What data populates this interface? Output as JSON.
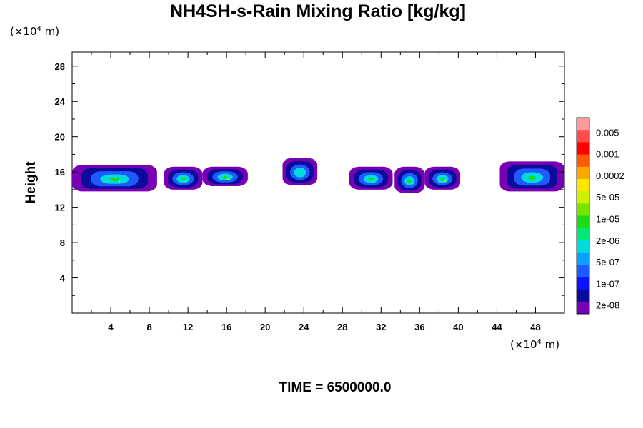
{
  "chart_data": {
    "type": "contour",
    "title": "NH4SH-s-Rain Mixing Ratio [kg/kg]",
    "ylabel": "Height",
    "x_unit_prefix": "(×10",
    "x_unit_exp": "4",
    "x_unit_suffix": " m)",
    "y_unit_prefix": "(×10",
    "y_unit_exp": "4",
    "y_unit_suffix": " m)",
    "xlim": [
      0,
      51
    ],
    "ylim": [
      0,
      29.6
    ],
    "x_ticks": [
      "4",
      "8",
      "12",
      "16",
      "20",
      "24",
      "28",
      "32",
      "36",
      "40",
      "44",
      "48"
    ],
    "y_ticks": [
      "4",
      "8",
      "12",
      "16",
      "20",
      "24",
      "28"
    ],
    "time_label": "TIME = 6500000.0",
    "colorbar": {
      "labels": [
        "0.005",
        "0.001",
        "0.0002",
        "5e-05",
        "1e-05",
        "2e-06",
        "5e-07",
        "1e-07",
        "2e-08"
      ],
      "colors": [
        "#ff9b9b",
        "#ff4b4b",
        "#ff0000",
        "#ff5a00",
        "#ffa500",
        "#ffe600",
        "#ccf000",
        "#78e600",
        "#1edc14",
        "#00e678",
        "#00dcdc",
        "#0aa0ff",
        "#1e5aff",
        "#0a14ff",
        "#0a0a9b",
        "#7800b4"
      ]
    },
    "cells": [
      {
        "x": [
          0,
          8.8
        ],
        "y": [
          13.8,
          16.8
        ],
        "peak": "5e-05"
      },
      {
        "x": [
          9.5,
          13.5
        ],
        "y": [
          14.0,
          16.6
        ],
        "peak": "5e-05"
      },
      {
        "x": [
          13.5,
          18.2
        ],
        "y": [
          14.4,
          16.6
        ],
        "peak": "5e-05"
      },
      {
        "x": [
          21.8,
          25.4
        ],
        "y": [
          14.5,
          17.6
        ],
        "peak": "5e-07"
      },
      {
        "x": [
          28.7,
          33.2
        ],
        "y": [
          14.0,
          16.6
        ],
        "peak": "5e-05"
      },
      {
        "x": [
          33.4,
          36.5
        ],
        "y": [
          13.6,
          16.6
        ],
        "peak": "5e-05"
      },
      {
        "x": [
          36.5,
          40.2
        ],
        "y": [
          14.0,
          16.6
        ],
        "peak": "5e-05"
      },
      {
        "x": [
          44.3,
          51
        ],
        "y": [
          13.8,
          17.2
        ],
        "peak": "1e-05"
      }
    ]
  }
}
